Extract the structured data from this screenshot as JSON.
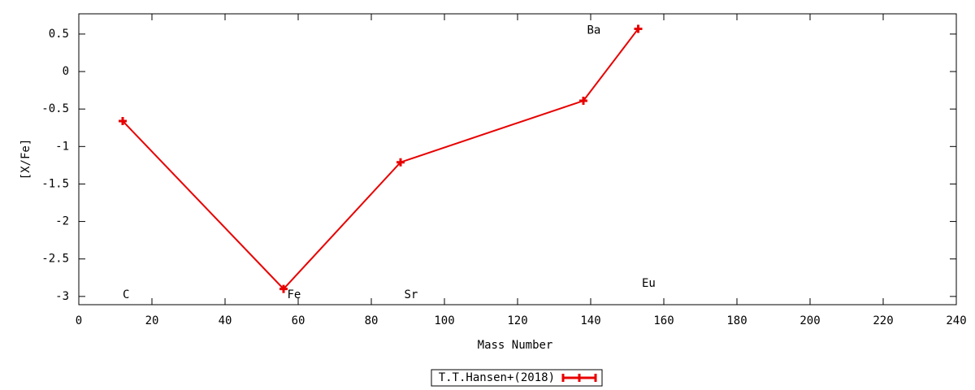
{
  "chart_data": {
    "type": "line",
    "xlabel": "Mass Number",
    "ylabel": "[X/Fe]",
    "xlim": [
      0,
      240
    ],
    "xticks": [
      0,
      20,
      40,
      60,
      80,
      100,
      120,
      140,
      160,
      180,
      200,
      220,
      240
    ],
    "ylim": [
      -3.11,
      0.77
    ],
    "yticks": [
      0.5,
      0,
      -0.5,
      -1,
      -1.5,
      -2,
      -2.5,
      -3
    ],
    "series": [
      {
        "name": "T.T.Hansen+(2018)",
        "color": "#e80000",
        "x": [
          12,
          56,
          88,
          138,
          153
        ],
        "values": [
          -0.66,
          -2.9,
          -1.21,
          -0.39,
          0.57
        ]
      }
    ],
    "annotations": [
      {
        "text": "C",
        "x": 12,
        "y": -2.98
      },
      {
        "text": "Fe",
        "x": 57,
        "y": -2.98
      },
      {
        "text": "Sr",
        "x": 89,
        "y": -2.98
      },
      {
        "text": "Ba",
        "x": 139,
        "y": 0.55
      },
      {
        "text": "Eu",
        "x": 154,
        "y": -2.83
      }
    ],
    "legend": "bottom"
  }
}
